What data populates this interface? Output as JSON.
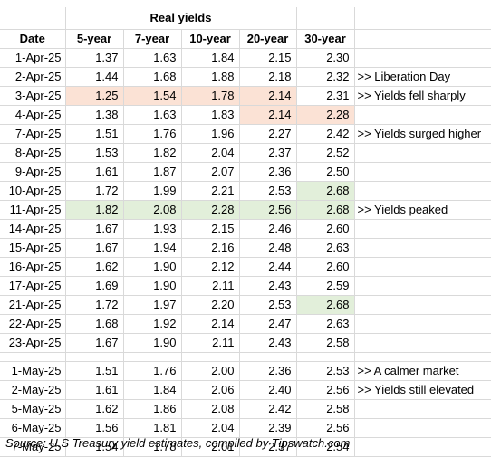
{
  "title": "Real yields",
  "headers": [
    "Date",
    "5-year",
    "7-year",
    "10-year",
    "20-year",
    "30-year"
  ],
  "rows_april": [
    {
      "date": "1-Apr-25",
      "values": [
        "1.37",
        "1.63",
        "1.84",
        "2.15",
        "2.30"
      ],
      "note": "",
      "highlight": [
        "",
        "",
        "",
        "",
        ""
      ]
    },
    {
      "date": "2-Apr-25",
      "values": [
        "1.44",
        "1.68",
        "1.88",
        "2.18",
        "2.32"
      ],
      "note": ">> Liberation Day",
      "highlight": [
        "",
        "",
        "",
        "",
        ""
      ]
    },
    {
      "date": "3-Apr-25",
      "values": [
        "1.25",
        "1.54",
        "1.78",
        "2.14",
        "2.31"
      ],
      "note": ">> Yields fell sharply",
      "highlight": [
        "red",
        "red",
        "red",
        "red",
        ""
      ]
    },
    {
      "date": "4-Apr-25",
      "values": [
        "1.38",
        "1.63",
        "1.83",
        "2.14",
        "2.28"
      ],
      "note": "",
      "highlight": [
        "",
        "",
        "",
        "red",
        "red"
      ]
    },
    {
      "date": "7-Apr-25",
      "values": [
        "1.51",
        "1.76",
        "1.96",
        "2.27",
        "2.42"
      ],
      "note": ">> Yields surged higher",
      "highlight": [
        "",
        "",
        "",
        "",
        ""
      ]
    },
    {
      "date": "8-Apr-25",
      "values": [
        "1.53",
        "1.82",
        "2.04",
        "2.37",
        "2.52"
      ],
      "note": "",
      "highlight": [
        "",
        "",
        "",
        "",
        ""
      ]
    },
    {
      "date": "9-Apr-25",
      "values": [
        "1.61",
        "1.87",
        "2.07",
        "2.36",
        "2.50"
      ],
      "note": "",
      "highlight": [
        "",
        "",
        "",
        "",
        ""
      ]
    },
    {
      "date": "10-Apr-25",
      "values": [
        "1.72",
        "1.99",
        "2.21",
        "2.53",
        "2.68"
      ],
      "note": "",
      "highlight": [
        "",
        "",
        "",
        "",
        "green"
      ]
    },
    {
      "date": "11-Apr-25",
      "values": [
        "1.82",
        "2.08",
        "2.28",
        "2.56",
        "2.68"
      ],
      "note": ">> Yields peaked",
      "highlight": [
        "green",
        "green",
        "green",
        "green",
        "green"
      ]
    },
    {
      "date": "14-Apr-25",
      "values": [
        "1.67",
        "1.93",
        "2.15",
        "2.46",
        "2.60"
      ],
      "note": "",
      "highlight": [
        "",
        "",
        "",
        "",
        ""
      ]
    },
    {
      "date": "15-Apr-25",
      "values": [
        "1.67",
        "1.94",
        "2.16",
        "2.48",
        "2.63"
      ],
      "note": "",
      "highlight": [
        "",
        "",
        "",
        "",
        ""
      ]
    },
    {
      "date": "16-Apr-25",
      "values": [
        "1.62",
        "1.90",
        "2.12",
        "2.44",
        "2.60"
      ],
      "note": "",
      "highlight": [
        "",
        "",
        "",
        "",
        ""
      ]
    },
    {
      "date": "17-Apr-25",
      "values": [
        "1.69",
        "1.90",
        "2.11",
        "2.43",
        "2.59"
      ],
      "note": "",
      "highlight": [
        "",
        "",
        "",
        "",
        ""
      ]
    },
    {
      "date": "21-Apr-25",
      "values": [
        "1.72",
        "1.97",
        "2.20",
        "2.53",
        "2.68"
      ],
      "note": "",
      "highlight": [
        "",
        "",
        "",
        "",
        "green"
      ]
    },
    {
      "date": "22-Apr-25",
      "values": [
        "1.68",
        "1.92",
        "2.14",
        "2.47",
        "2.63"
      ],
      "note": "",
      "highlight": [
        "",
        "",
        "",
        "",
        ""
      ]
    },
    {
      "date": "23-Apr-25",
      "values": [
        "1.67",
        "1.90",
        "2.11",
        "2.43",
        "2.58"
      ],
      "note": "",
      "highlight": [
        "",
        "",
        "",
        "",
        ""
      ]
    }
  ],
  "rows_may": [
    {
      "date": "1-May-25",
      "values": [
        "1.51",
        "1.76",
        "2.00",
        "2.36",
        "2.53"
      ],
      "note": ">> A calmer market",
      "highlight": [
        "",
        "",
        "",
        "",
        ""
      ]
    },
    {
      "date": "2-May-25",
      "values": [
        "1.61",
        "1.84",
        "2.06",
        "2.40",
        "2.56"
      ],
      "note": ">> Yields still elevated",
      "highlight": [
        "",
        "",
        "",
        "",
        ""
      ]
    },
    {
      "date": "5-May-25",
      "values": [
        "1.62",
        "1.86",
        "2.08",
        "2.42",
        "2.58"
      ],
      "note": "",
      "highlight": [
        "",
        "",
        "",
        "",
        ""
      ]
    },
    {
      "date": "6-May-25",
      "values": [
        "1.56",
        "1.81",
        "2.04",
        "2.39",
        "2.56"
      ],
      "note": "",
      "highlight": [
        "",
        "",
        "",
        "",
        ""
      ]
    },
    {
      "date": "7-May-25",
      "values": [
        "1.54",
        "1.78",
        "2.01",
        "2.37",
        "2.54"
      ],
      "note": "",
      "highlight": [
        "",
        "",
        "",
        "",
        ""
      ]
    }
  ],
  "source": "Source: U.S Treasury yield estimates, compiled by Tipswatch.com",
  "colors": {
    "highlight_red": "#fbe2d5",
    "highlight_green": "#e2efda",
    "gridline": "#d9d9d9"
  }
}
